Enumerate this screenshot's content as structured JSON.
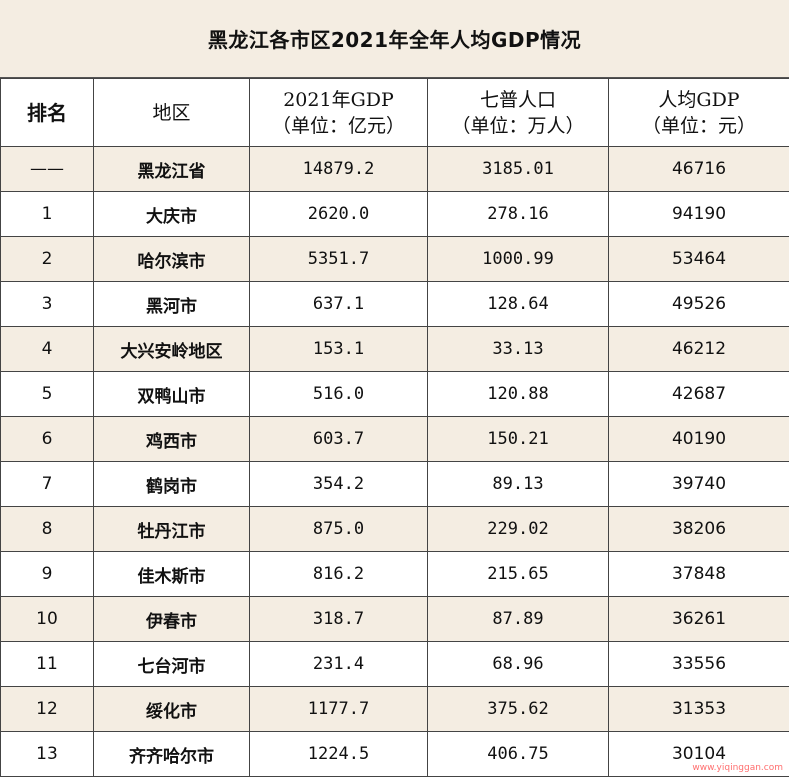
{
  "title": "黑龙江各市区2021年全年人均GDP情况",
  "headers": [
    {
      "line1": "排名",
      "line2": ""
    },
    {
      "line1": "地区",
      "line2": ""
    },
    {
      "line1": "2021年GDP",
      "line2": "（单位：亿元）"
    },
    {
      "line1": "七普人口",
      "line2": "（单位：万人）"
    },
    {
      "line1": "人均GDP",
      "line2": "（单位：元）"
    }
  ],
  "rows": [
    {
      "rank": "——",
      "region": "黑龙江省",
      "gdp": "14879.2",
      "population": "3185.01",
      "per_capita": "46716"
    },
    {
      "rank": "1",
      "region": "大庆市",
      "gdp": "2620.0",
      "population": "278.16",
      "per_capita": "94190"
    },
    {
      "rank": "2",
      "region": "哈尔滨市",
      "gdp": "5351.7",
      "population": "1000.99",
      "per_capita": "53464"
    },
    {
      "rank": "3",
      "region": "黑河市",
      "gdp": "637.1",
      "population": "128.64",
      "per_capita": "49526"
    },
    {
      "rank": "4",
      "region": "大兴安岭地区",
      "gdp": "153.1",
      "population": "33.13",
      "per_capita": "46212"
    },
    {
      "rank": "5",
      "region": "双鸭山市",
      "gdp": "516.0",
      "population": "120.88",
      "per_capita": "42687"
    },
    {
      "rank": "6",
      "region": "鸡西市",
      "gdp": "603.7",
      "population": "150.21",
      "per_capita": "40190"
    },
    {
      "rank": "7",
      "region": "鹤岗市",
      "gdp": "354.2",
      "population": "89.13",
      "per_capita": "39740"
    },
    {
      "rank": "8",
      "region": "牡丹江市",
      "gdp": "875.0",
      "population": "229.02",
      "per_capita": "38206"
    },
    {
      "rank": "9",
      "region": "佳木斯市",
      "gdp": "816.2",
      "population": "215.65",
      "per_capita": "37848"
    },
    {
      "rank": "10",
      "region": "伊春市",
      "gdp": "318.7",
      "population": "87.89",
      "per_capita": "36261"
    },
    {
      "rank": "11",
      "region": "七台河市",
      "gdp": "231.4",
      "population": "68.96",
      "per_capita": "33556"
    },
    {
      "rank": "12",
      "region": "绥化市",
      "gdp": "1177.7",
      "population": "375.62",
      "per_capita": "31353"
    },
    {
      "rank": "13",
      "region": "齐齐哈尔市",
      "gdp": "1224.5",
      "population": "406.75",
      "per_capita": "30104"
    }
  ],
  "watermark": "www.yiqinggan.com",
  "colors": {
    "shade": "#f4ede2",
    "border": "#444444"
  }
}
